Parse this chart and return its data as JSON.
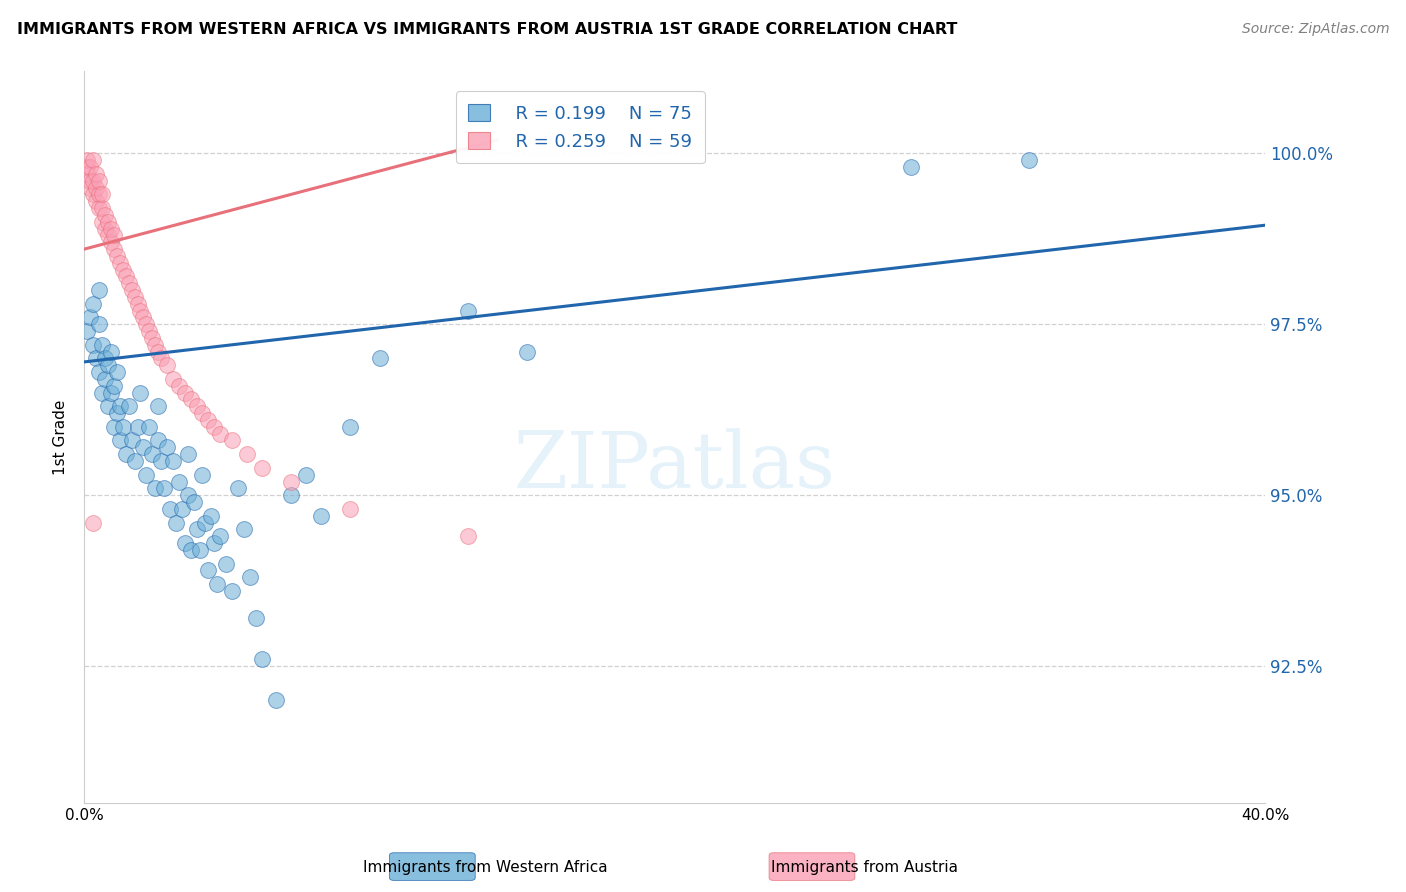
{
  "title": "IMMIGRANTS FROM WESTERN AFRICA VS IMMIGRANTS FROM AUSTRIA 1ST GRADE CORRELATION CHART",
  "source": "Source: ZipAtlas.com",
  "ylabel": "1st Grade",
  "ytick_labels": [
    "100.0%",
    "97.5%",
    "95.0%",
    "92.5%"
  ],
  "ytick_values": [
    1.0,
    0.975,
    0.95,
    0.925
  ],
  "xlim": [
    0.0,
    0.4
  ],
  "ylim": [
    0.905,
    1.012
  ],
  "legend_blue_label": "Immigrants from Western Africa",
  "legend_pink_label": "Immigrants from Austria",
  "R_blue": 0.199,
  "N_blue": 75,
  "R_pink": 0.259,
  "N_pink": 59,
  "blue_color": "#6baed6",
  "pink_color": "#fa9fb5",
  "blue_line_color": "#2166ac",
  "pink_line_color": "#e8707a",
  "grid_color": "#cccccc",
  "background_color": "#ffffff",
  "watermark": "ZIPatlas",
  "blue_x": [
    0.001,
    0.002,
    0.003,
    0.003,
    0.004,
    0.005,
    0.005,
    0.005,
    0.006,
    0.006,
    0.007,
    0.007,
    0.008,
    0.008,
    0.009,
    0.009,
    0.01,
    0.01,
    0.011,
    0.011,
    0.012,
    0.012,
    0.013,
    0.014,
    0.015,
    0.016,
    0.017,
    0.018,
    0.019,
    0.02,
    0.021,
    0.022,
    0.023,
    0.024,
    0.025,
    0.025,
    0.026,
    0.027,
    0.028,
    0.029,
    0.03,
    0.031,
    0.032,
    0.033,
    0.034,
    0.035,
    0.035,
    0.036,
    0.037,
    0.038,
    0.039,
    0.04,
    0.041,
    0.042,
    0.043,
    0.044,
    0.045,
    0.046,
    0.048,
    0.05,
    0.052,
    0.054,
    0.056,
    0.058,
    0.06,
    0.065,
    0.07,
    0.075,
    0.08,
    0.09,
    0.1,
    0.13,
    0.15,
    0.28,
    0.32
  ],
  "blue_y": [
    0.974,
    0.976,
    0.972,
    0.978,
    0.97,
    0.968,
    0.975,
    0.98,
    0.965,
    0.972,
    0.97,
    0.967,
    0.963,
    0.969,
    0.965,
    0.971,
    0.96,
    0.966,
    0.962,
    0.968,
    0.958,
    0.963,
    0.96,
    0.956,
    0.963,
    0.958,
    0.955,
    0.96,
    0.965,
    0.957,
    0.953,
    0.96,
    0.956,
    0.951,
    0.958,
    0.963,
    0.955,
    0.951,
    0.957,
    0.948,
    0.955,
    0.946,
    0.952,
    0.948,
    0.943,
    0.95,
    0.956,
    0.942,
    0.949,
    0.945,
    0.942,
    0.953,
    0.946,
    0.939,
    0.947,
    0.943,
    0.937,
    0.944,
    0.94,
    0.936,
    0.951,
    0.945,
    0.938,
    0.932,
    0.926,
    0.92,
    0.95,
    0.953,
    0.947,
    0.96,
    0.97,
    0.977,
    0.971,
    0.998,
    0.999
  ],
  "pink_x": [
    0.001,
    0.001,
    0.001,
    0.002,
    0.002,
    0.002,
    0.003,
    0.003,
    0.003,
    0.004,
    0.004,
    0.004,
    0.005,
    0.005,
    0.005,
    0.006,
    0.006,
    0.006,
    0.007,
    0.007,
    0.008,
    0.008,
    0.009,
    0.009,
    0.01,
    0.01,
    0.011,
    0.012,
    0.013,
    0.014,
    0.015,
    0.016,
    0.017,
    0.018,
    0.019,
    0.02,
    0.021,
    0.022,
    0.023,
    0.024,
    0.025,
    0.026,
    0.028,
    0.03,
    0.032,
    0.034,
    0.036,
    0.038,
    0.04,
    0.042,
    0.044,
    0.046,
    0.05,
    0.055,
    0.06,
    0.07,
    0.09,
    0.13,
    0.003
  ],
  "pink_y": [
    0.998,
    0.999,
    0.997,
    0.995,
    0.996,
    0.998,
    0.994,
    0.996,
    0.999,
    0.993,
    0.995,
    0.997,
    0.992,
    0.994,
    0.996,
    0.99,
    0.992,
    0.994,
    0.989,
    0.991,
    0.988,
    0.99,
    0.987,
    0.989,
    0.986,
    0.988,
    0.985,
    0.984,
    0.983,
    0.982,
    0.981,
    0.98,
    0.979,
    0.978,
    0.977,
    0.976,
    0.975,
    0.974,
    0.973,
    0.972,
    0.971,
    0.97,
    0.969,
    0.967,
    0.966,
    0.965,
    0.964,
    0.963,
    0.962,
    0.961,
    0.96,
    0.959,
    0.958,
    0.956,
    0.954,
    0.952,
    0.948,
    0.944,
    0.946
  ],
  "blue_trend_x": [
    0.0,
    0.4
  ],
  "blue_trend_y": [
    0.9695,
    0.9895
  ],
  "pink_trend_x": [
    0.0,
    0.14
  ],
  "pink_trend_y": [
    0.986,
    1.002
  ]
}
